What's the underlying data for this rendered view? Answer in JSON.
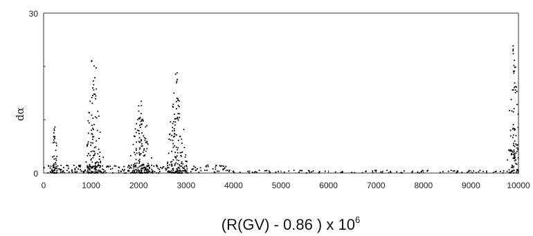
{
  "chart_data": {
    "type": "scatter",
    "xlabel_main": "(R(GV) - 0.86 ) x 10",
    "xlabel_sup": "6",
    "ylabel": "dα",
    "xlim": [
      0,
      10000
    ],
    "ylim": [
      0,
      30
    ],
    "x_ticks": [
      "0",
      "1000",
      "2000",
      "3000",
      "4000",
      "5000",
      "6000",
      "7000",
      "8000",
      "9000",
      "10000"
    ],
    "y_ticks": [
      "0",
      "30"
    ],
    "grid": false,
    "point_color": "#000000",
    "clusters": [
      {
        "center": 220,
        "spread": 80,
        "count": 40,
        "max": 9
      },
      {
        "center": 1050,
        "spread": 150,
        "count": 130,
        "max": 22
      },
      {
        "center": 2050,
        "spread": 200,
        "count": 140,
        "max": 15
      },
      {
        "center": 2800,
        "spread": 170,
        "count": 140,
        "max": 19
      },
      {
        "center": 9900,
        "spread": 110,
        "count": 110,
        "max": 25
      }
    ],
    "baseline": {
      "from": 0,
      "to": 4000,
      "count": 220,
      "max": 1.5
    },
    "sparse_baseline": {
      "from": 4000,
      "to": 9700,
      "count": 100,
      "max": 0.5
    }
  }
}
